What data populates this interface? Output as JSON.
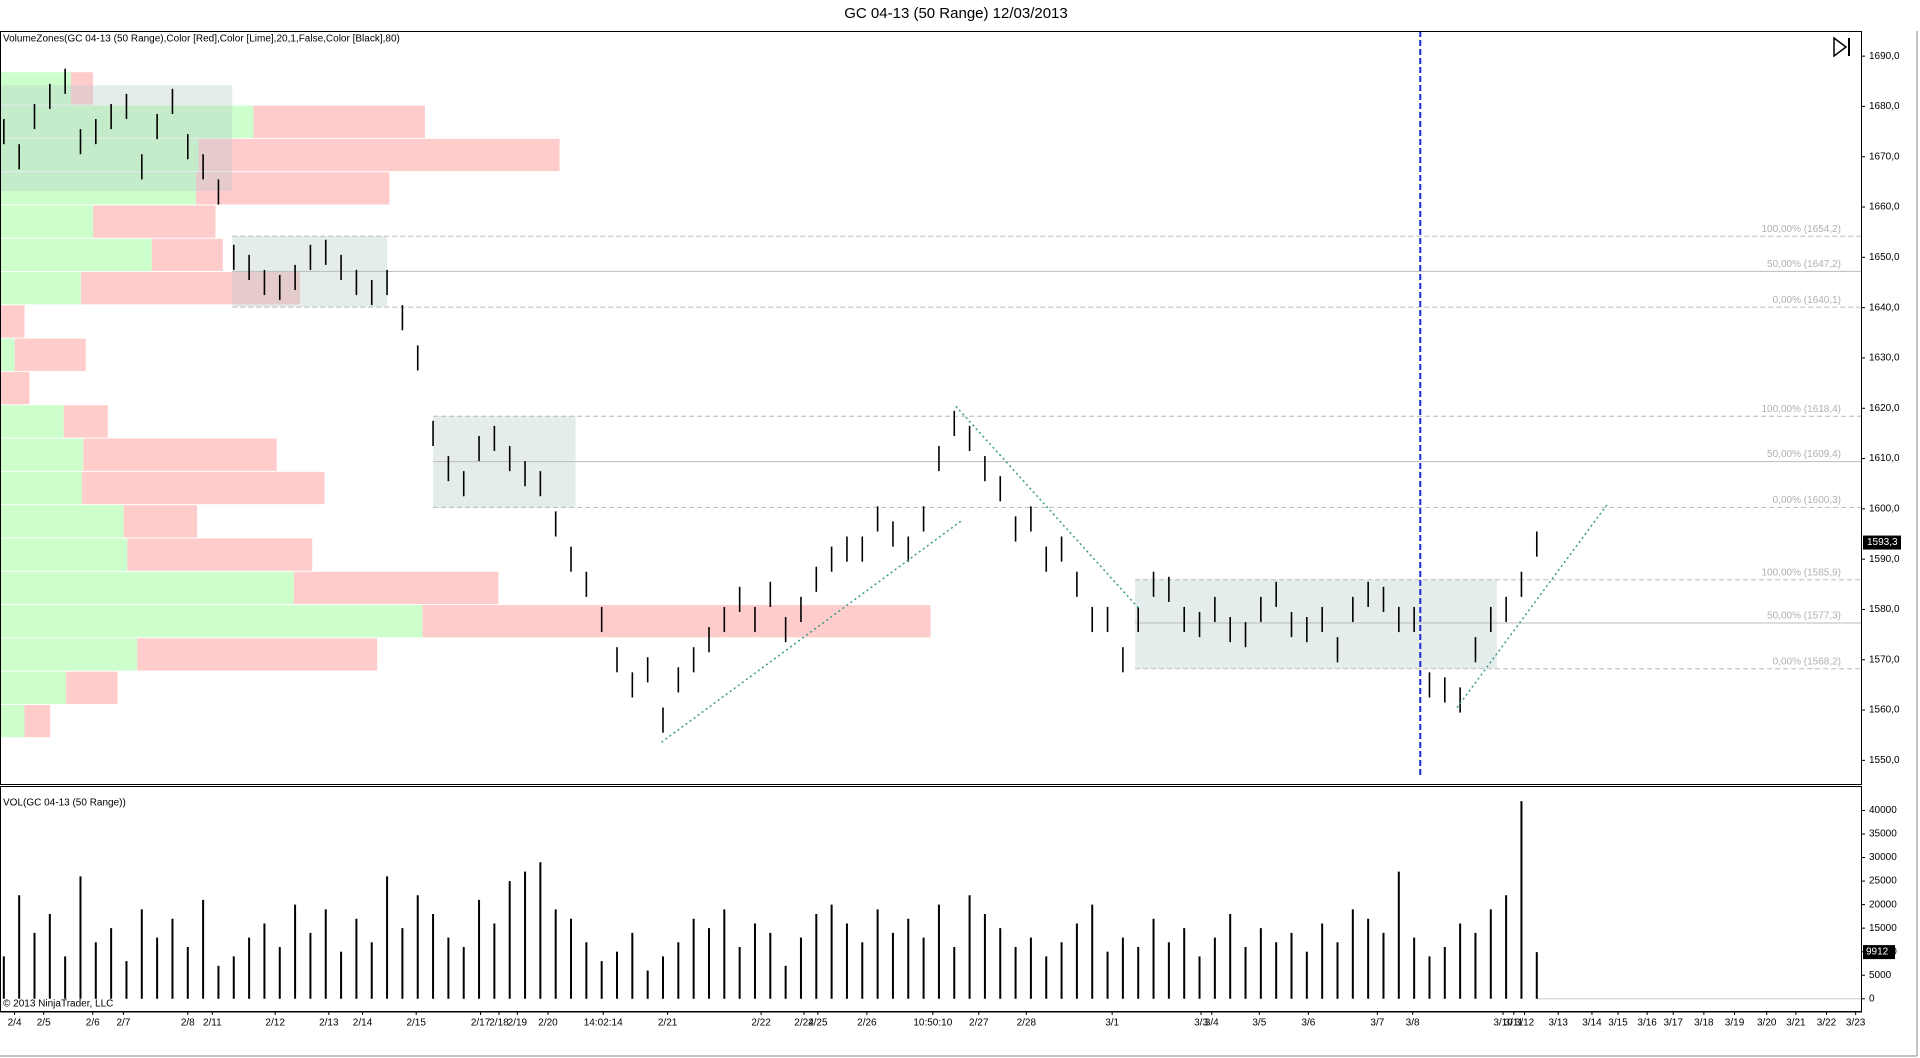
{
  "chart_data": {
    "type": "range_bars",
    "title": "GC 04-13 (50 Range)  12/03/2013",
    "indicator_label": "VolumeZones(GC 04-13 (50 Range),Color [Red],Color [Lime],20,1,False,Color [Black],80)",
    "volume_label": "VOL(GC 04-13 (50 Range))",
    "copyright": "© 2013 NinjaTrader, LLC",
    "bar_color": "#000000",
    "xlim": [
      -0.25,
      121.15
    ],
    "ylim": [
      1545.3,
      1695.0
    ],
    "yticks": [
      {
        "value": 1550,
        "label": "1550,0"
      },
      {
        "value": 1560,
        "label": "1560,0"
      },
      {
        "value": 1570,
        "label": "1570,0"
      },
      {
        "value": 1580,
        "label": "1580,0"
      },
      {
        "value": 1590,
        "label": "1590,0"
      },
      {
        "value": 1600,
        "label": "1600,0"
      },
      {
        "value": 1610,
        "label": "1610,0"
      },
      {
        "value": 1620,
        "label": "1620,0"
      },
      {
        "value": 1630,
        "label": "1630,0"
      },
      {
        "value": 1640,
        "label": "1640,0"
      },
      {
        "value": 1650,
        "label": "1650,0"
      },
      {
        "value": 1660,
        "label": "1660,0"
      },
      {
        "value": 1670,
        "label": "1670,0"
      },
      {
        "value": 1680,
        "label": "1680,0"
      },
      {
        "value": 1690,
        "label": "1690,0"
      }
    ],
    "high": [
      1677.5,
      1672.5,
      1680.5,
      1684.5,
      1687.5,
      1675.5,
      1677.5,
      1680.5,
      1682.5,
      1670.5,
      1678.5,
      1683.5,
      1674.5,
      1670.5,
      1665.5,
      1652.5,
      1650.5,
      1647.5,
      1646.5,
      1648.5,
      1652.5,
      1653.5,
      1650.5,
      1647.5,
      1645.5,
      1647.5,
      1640.5,
      1632.5,
      1617.5,
      1610.5,
      1607.5,
      1614.5,
      1616.5,
      1612.5,
      1609.5,
      1607.5,
      1599.5,
      1592.5,
      1587.5,
      1580.5,
      1572.5,
      1567.5,
      1570.5,
      1560.5,
      1568.5,
      1572.5,
      1576.5,
      1580.5,
      1584.5,
      1580.5,
      1585.5,
      1578.5,
      1582.5,
      1588.5,
      1592.5,
      1594.5,
      1594.5,
      1600.5,
      1597.5,
      1594.5,
      1600.5,
      1612.5,
      1619.5,
      1616.5,
      1610.5,
      1606.5,
      1598.5,
      1600.5,
      1592.5,
      1594.5,
      1587.5,
      1580.5,
      1580.5,
      1572.5,
      1580.5,
      1587.5,
      1586.5,
      1580.5,
      1579.5,
      1582.5,
      1578.5,
      1577.5,
      1582.5,
      1585.5,
      1579.5,
      1578.5,
      1580.5,
      1574.5,
      1582.5,
      1585.5,
      1584.5,
      1580.5,
      1580.5,
      1567.5,
      1566.5,
      1564.5,
      1574.5,
      1580.5,
      1582.5,
      1587.5,
      1595.5
    ],
    "low": [
      1672.5,
      1667.5,
      1675.5,
      1679.5,
      1682.5,
      1670.5,
      1672.5,
      1675.5,
      1677.5,
      1665.5,
      1673.5,
      1678.5,
      1669.5,
      1665.5,
      1660.5,
      1647.5,
      1645.5,
      1642.5,
      1641.5,
      1643.5,
      1647.5,
      1648.5,
      1645.5,
      1642.5,
      1640.5,
      1642.5,
      1635.5,
      1627.5,
      1612.5,
      1605.5,
      1602.5,
      1609.5,
      1611.5,
      1607.5,
      1604.5,
      1602.5,
      1594.5,
      1587.5,
      1582.5,
      1575.5,
      1567.5,
      1562.5,
      1565.5,
      1555.5,
      1563.5,
      1567.5,
      1571.5,
      1575.5,
      1579.5,
      1575.5,
      1580.5,
      1573.5,
      1577.5,
      1583.5,
      1587.5,
      1589.5,
      1589.5,
      1595.5,
      1592.5,
      1589.5,
      1595.5,
      1607.5,
      1614.5,
      1611.5,
      1605.5,
      1601.5,
      1593.5,
      1595.5,
      1587.5,
      1589.5,
      1582.5,
      1575.5,
      1575.5,
      1567.5,
      1575.5,
      1582.5,
      1581.5,
      1575.5,
      1574.5,
      1577.5,
      1573.5,
      1572.5,
      1577.5,
      1580.5,
      1574.5,
      1573.5,
      1575.5,
      1569.5,
      1577.5,
      1580.5,
      1579.5,
      1575.5,
      1575.5,
      1562.5,
      1561.5,
      1559.5,
      1569.5,
      1575.5,
      1577.5,
      1582.5,
      1590.5
    ],
    "last_price": {
      "value": 1593.3,
      "label": "1593,3"
    },
    "volume": [
      9000,
      22000,
      14000,
      18000,
      9000,
      26000,
      12000,
      15000,
      8000,
      19000,
      13000,
      17000,
      11000,
      21000,
      7000,
      9000,
      13000,
      16000,
      11000,
      20000,
      14000,
      19000,
      10000,
      17000,
      12000,
      26000,
      15000,
      22000,
      18000,
      13000,
      11000,
      21000,
      16000,
      25000,
      27000,
      29000,
      19000,
      17000,
      12000,
      8000,
      10000,
      14000,
      6000,
      9000,
      12000,
      17000,
      15000,
      19000,
      11000,
      16000,
      14000,
      7000,
      13000,
      18000,
      20000,
      16000,
      12000,
      19000,
      14000,
      17000,
      13000,
      20000,
      11000,
      22000,
      18000,
      15000,
      11000,
      13000,
      9000,
      12000,
      16000,
      20000,
      10000,
      13000,
      11000,
      17000,
      12000,
      15000,
      9000,
      13000,
      18000,
      11000,
      15000,
      12000,
      14000,
      10000,
      16000,
      12000,
      19000,
      17000,
      14000,
      27000,
      13000,
      9000,
      11000,
      16000,
      14000,
      19000,
      22000,
      42000,
      9912
    ],
    "volume_ylim": [
      -2600,
      45200
    ],
    "volume_yticks": [
      0,
      5000,
      10000,
      15000,
      20000,
      25000,
      30000,
      35000,
      40000
    ],
    "last_volume": 9912,
    "volume_zones": {
      "top": 1686.8,
      "bottom": 1554.4,
      "up_color": "#ccffcc",
      "down_color": "#ffcccc",
      "up": [
        58,
        207,
        162,
        160,
        76,
        124,
        66,
        0,
        12,
        0,
        52,
        68,
        67,
        101,
        104,
        240,
        345,
        112,
        54,
        20
      ],
      "down": [
        18,
        140,
        295,
        158,
        100,
        58,
        179,
        20,
        58,
        24,
        36,
        158,
        198,
        60,
        151,
        167,
        415,
        196,
        42,
        21
      ]
    },
    "boxes": [
      {
        "x0": -0.2,
        "x1": 14.9,
        "high": 1684.2,
        "low": 1663.2
      },
      {
        "x0": 14.9,
        "x1": 25,
        "high": 1654.2,
        "mid": 1647.2,
        "low": 1640.1,
        "labels": [
          "100,00% (1654,2)",
          "50,00% (1647,2)",
          "0,00% (1640,1)"
        ]
      },
      {
        "x0": 28,
        "x1": 37.3,
        "high": 1618.4,
        "mid": 1609.4,
        "low": 1600.3,
        "labels": [
          "100,00% (1618,4)",
          "50,00% (1609,4)",
          "0,00% (1600,3)"
        ]
      },
      {
        "x0": 73.8,
        "x1": 97.4,
        "high": 1585.9,
        "mid": 1577.3,
        "low": 1568.2,
        "labels": [
          "100,00% (1585,9)",
          "50,00% (1577,3)",
          "0,00% (1568,2)"
        ]
      }
    ],
    "trend_lines": [
      {
        "x": [
          42.9,
          62.5
        ],
        "y": [
          1553.6,
          1597.7
        ]
      },
      {
        "x": [
          62.1,
          74.1
        ],
        "y": [
          1620.4,
          1580.0
        ]
      },
      {
        "x": [
          94.8,
          104.6
        ],
        "y": [
          1560.5,
          1600.9
        ]
      }
    ],
    "session_line": 92.4,
    "date_ticks": [
      {
        "value": 0.7,
        "label": "2/4"
      },
      {
        "value": 2.6,
        "label": "2/5"
      },
      {
        "value": 5.8,
        "label": "2/6"
      },
      {
        "value": 7.8,
        "label": "2/7"
      },
      {
        "value": 12,
        "label": "2/8"
      },
      {
        "value": 13.6,
        "label": "2/11"
      },
      {
        "value": 17.7,
        "label": "2/12"
      },
      {
        "value": 21.2,
        "label": "2/13"
      },
      {
        "value": 23.4,
        "label": "2/14"
      },
      {
        "value": 26.9,
        "label": "2/15"
      },
      {
        "value": 31.1,
        "label": "2/17"
      },
      {
        "value": 32.3,
        "label": "2/18"
      },
      {
        "value": 33.5,
        "label": "2/19"
      },
      {
        "value": 35.5,
        "label": "2/20"
      },
      {
        "value": 39.1,
        "label": "14:02:14"
      },
      {
        "value": 43.3,
        "label": "2/21"
      },
      {
        "value": 49.4,
        "label": "2/22"
      },
      {
        "value": 52.2,
        "label": "2/24"
      },
      {
        "value": 53.1,
        "label": "2/25"
      },
      {
        "value": 56.3,
        "label": "2/26"
      },
      {
        "value": 60.6,
        "label": "10:50:10"
      },
      {
        "value": 63.6,
        "label": "2/27"
      },
      {
        "value": 66.7,
        "label": "2/28"
      },
      {
        "value": 72.3,
        "label": "3/1"
      },
      {
        "value": 78.1,
        "label": "3/3"
      },
      {
        "value": 78.8,
        "label": "3/4"
      },
      {
        "value": 81.9,
        "label": "3/5"
      },
      {
        "value": 85.1,
        "label": "3/6"
      },
      {
        "value": 89.6,
        "label": "3/7"
      },
      {
        "value": 91.9,
        "label": "3/8"
      },
      {
        "value": 97.8,
        "label": "3/10"
      },
      {
        "value": 98.5,
        "label": "3/11"
      },
      {
        "value": 99.2,
        "label": "3/12"
      },
      {
        "value": 101.4,
        "label": "3/13"
      },
      {
        "value": 103.6,
        "label": "3/14"
      },
      {
        "value": 105.3,
        "label": "3/15"
      },
      {
        "value": 107.2,
        "label": "3/16"
      },
      {
        "value": 108.9,
        "label": "3/17"
      },
      {
        "value": 110.9,
        "label": "3/18"
      },
      {
        "value": 112.9,
        "label": "3/19"
      },
      {
        "value": 115,
        "label": "3/20"
      },
      {
        "value": 116.9,
        "label": "3/21"
      },
      {
        "value": 118.9,
        "label": "3/22"
      },
      {
        "value": 120.8,
        "label": "3/23"
      }
    ]
  }
}
